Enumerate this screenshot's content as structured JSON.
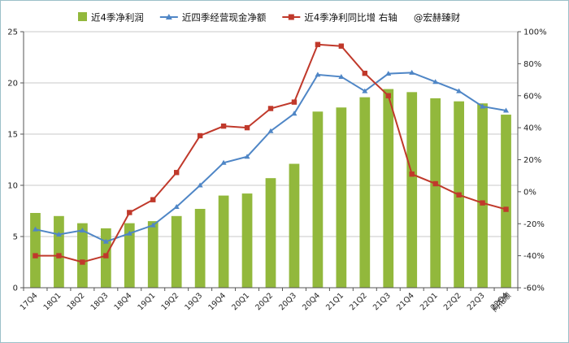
{
  "chart_data": {
    "type": "bar",
    "categories": [
      "17Q4",
      "18Q1",
      "18Q2",
      "18Q3",
      "18Q4",
      "19Q1",
      "19Q2",
      "19Q3",
      "19Q4",
      "20Q1",
      "20Q2",
      "20Q3",
      "20Q4",
      "21Q1",
      "21Q2",
      "21Q3",
      "21Q4",
      "22Q1",
      "22Q2",
      "22Q3",
      "22Q4"
    ],
    "series": [
      {
        "name": "近4季净利润",
        "type": "bar",
        "axis": "left",
        "color": "#92b83c",
        "values": [
          7.3,
          7.0,
          6.3,
          5.8,
          6.3,
          6.5,
          7.0,
          7.7,
          9.0,
          9.2,
          10.7,
          12.1,
          17.2,
          17.6,
          18.6,
          19.4,
          19.1,
          18.5,
          18.2,
          18.0,
          16.9
        ]
      },
      {
        "name": "近四季经营现金净额",
        "type": "line",
        "axis": "left",
        "color": "#4f86c6",
        "marker": "triangle",
        "values": [
          5.7,
          5.2,
          5.6,
          4.5,
          5.3,
          6.1,
          7.9,
          10.0,
          12.2,
          12.8,
          15.3,
          17.0,
          20.8,
          20.6,
          19.2,
          20.9,
          21.0,
          20.1,
          19.2,
          17.7,
          17.3
        ]
      },
      {
        "name": "近4季净利同比增 右轴",
        "type": "line",
        "axis": "right",
        "color": "#c0392b",
        "marker": "square",
        "values": [
          -40,
          -40,
          -44,
          -40,
          -13,
          -5,
          12,
          35,
          41,
          40,
          52,
          56,
          92,
          91,
          74,
          60,
          11,
          5,
          -2,
          -7,
          -11
        ]
      }
    ],
    "y_left": {
      "min": 0,
      "max": 25,
      "ticks": [
        "0",
        "5",
        "10",
        "15",
        "20",
        "25"
      ]
    },
    "y_right": {
      "min": -60,
      "max": 100,
      "ticks": [
        "-60%",
        "-40%",
        "-20%",
        "0%",
        "20%",
        "40%",
        "60%",
        "80%",
        "100%"
      ]
    },
    "grid": "horizontal",
    "legend": {
      "position": "top",
      "watermark": "@宏赫臻财"
    },
    "source_label": "同花顺"
  }
}
